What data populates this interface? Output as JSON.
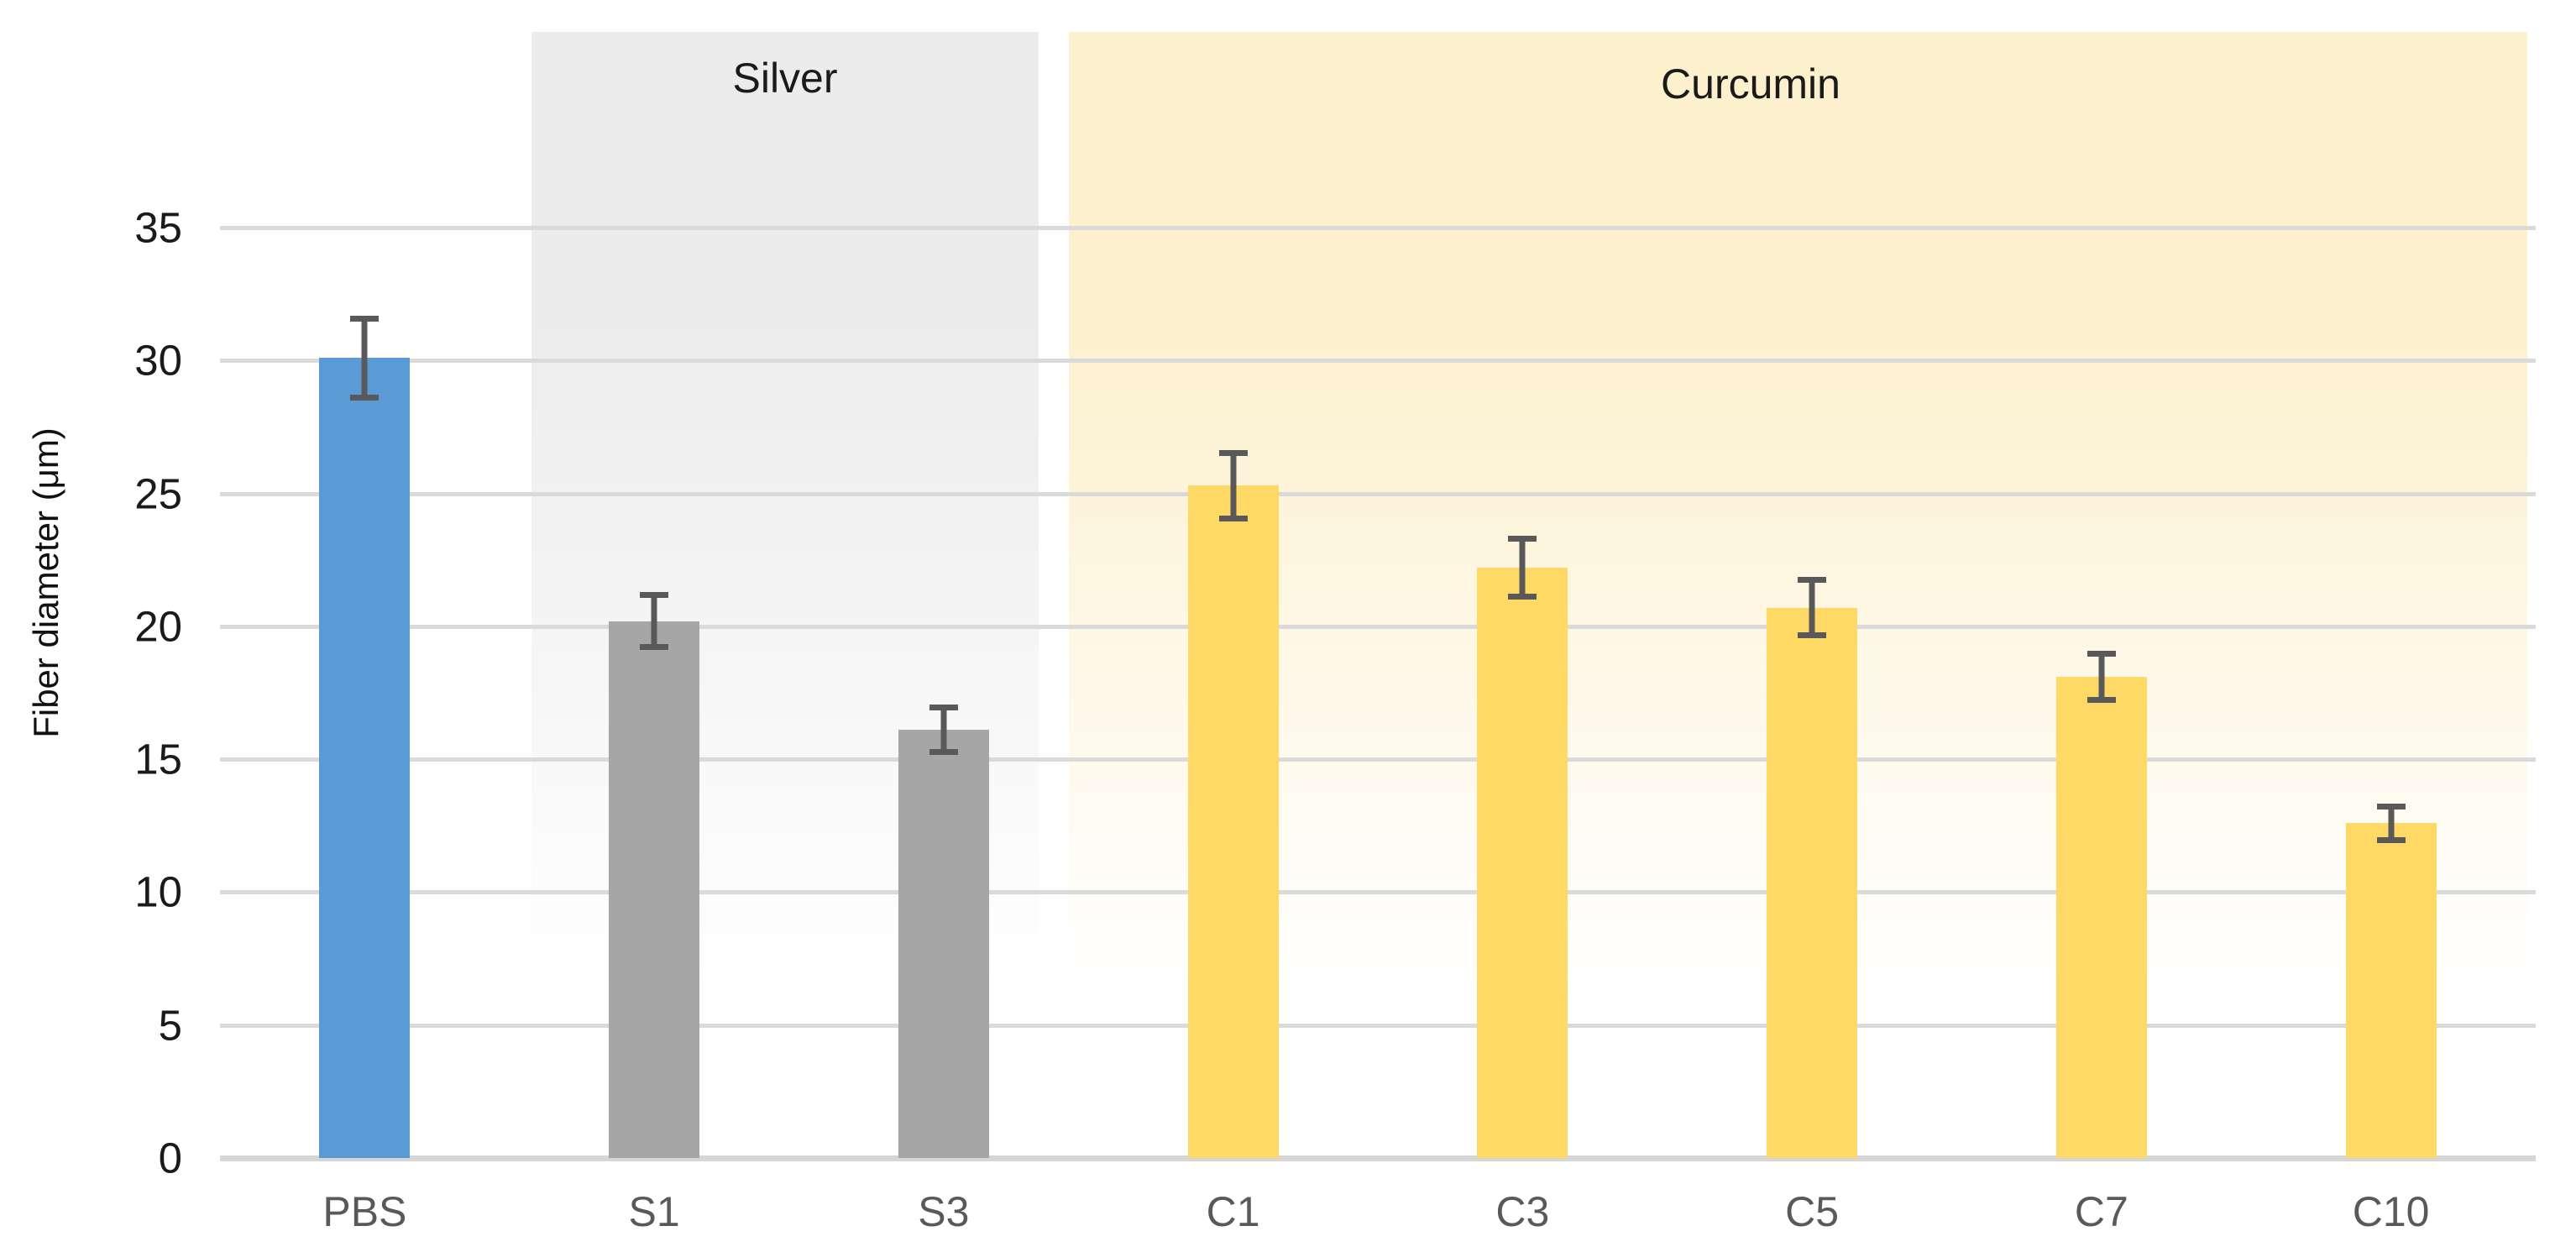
{
  "chart_data": {
    "type": "bar",
    "title": "",
    "ylabel": "Fiber diameter (μm)",
    "xlabel": "",
    "categories": [
      "PBS",
      "S1",
      "S3",
      "C1",
      "C3",
      "C5",
      "C7",
      "C10"
    ],
    "values": [
      30.1,
      20.2,
      16.1,
      25.3,
      22.2,
      20.7,
      18.1,
      12.6
    ],
    "errors": [
      1.5,
      1.0,
      0.85,
      1.25,
      1.1,
      1.05,
      0.9,
      0.65
    ],
    "bar_colors": [
      "#5B9BD5",
      "#A6A6A6",
      "#A6A6A6",
      "#FFD966",
      "#FFD966",
      "#FFD966",
      "#FFD966",
      "#FFD966"
    ],
    "ylim": [
      0,
      40
    ],
    "yticks": [
      0,
      5,
      10,
      15,
      20,
      25,
      30,
      35
    ],
    "grid": true,
    "legend": "none",
    "bands": [
      {
        "label": "Silver",
        "color": "#ECECEC",
        "covers": [
          "S1",
          "S3"
        ]
      },
      {
        "label": "Curcumin",
        "color": "#FCF0CD",
        "covers": [
          "C1",
          "C3",
          "C5",
          "C7",
          "C10"
        ]
      }
    ],
    "colors": {
      "gridline": "#DADADA",
      "axis_line": "#D6D6D6",
      "error_bar": "#595959",
      "tick_label": "#1a1a1a",
      "category_label": "#595959"
    }
  }
}
